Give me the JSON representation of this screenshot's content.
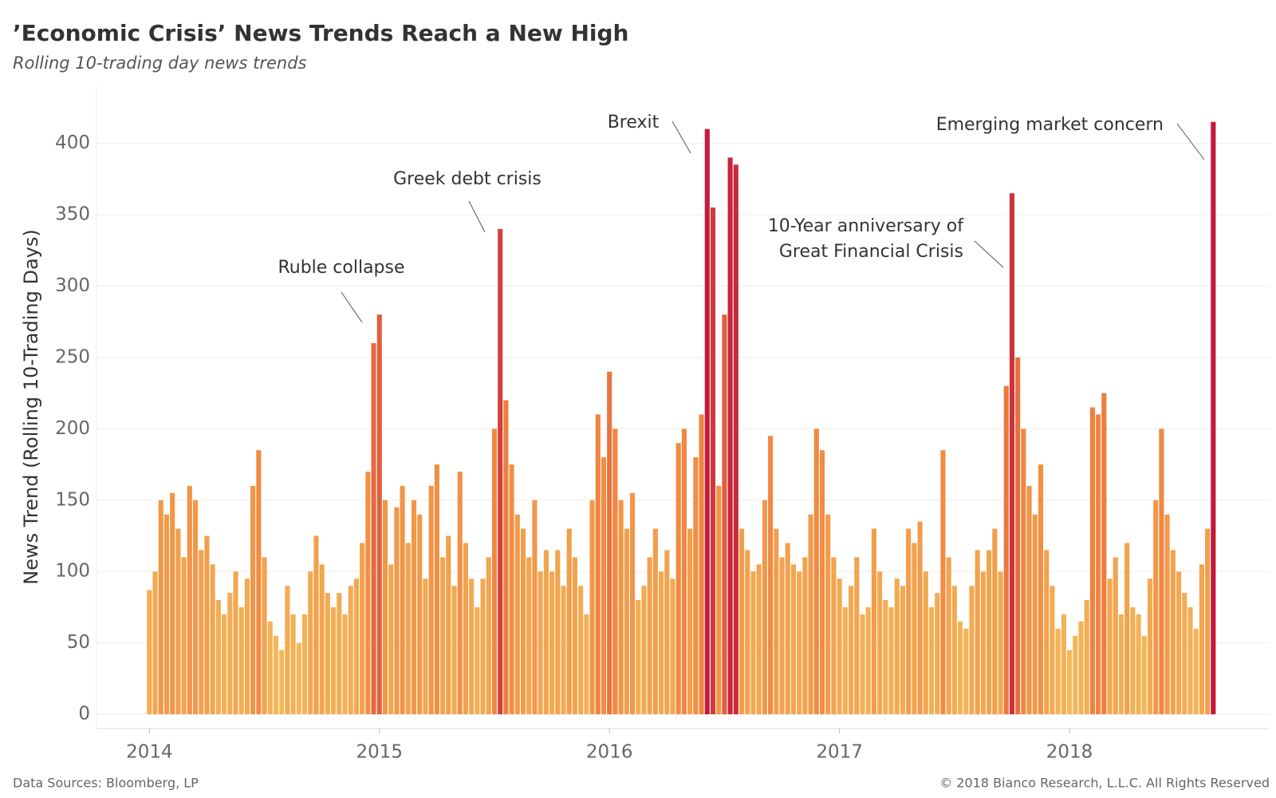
{
  "chart_data": {
    "type": "bar",
    "title": "’Economic Crisis’ News Trends Reach a New High",
    "subtitle": "Rolling 10-trading day news trends",
    "y_label": "News Trend (Rolling 10-Trading Days)",
    "source": "Data Sources: Bloomberg, LP",
    "copyright": "© 2018 Bianco Research, L.L.C. All Rights Reserved",
    "annotations": [
      "Ruble collapse",
      "Greek debt crisis",
      "Brexit",
      "10-Year anniversary of",
      "Great Financial Crisis",
      "Emerging market concern"
    ],
    "color_stops": [
      "#f5c760",
      "#f0853f",
      "#c1173b"
    ],
    "grid": true,
    "xlim": [
      2013.77,
      2018.87
    ],
    "xticks": [
      2014,
      2015,
      2016,
      2017,
      2018
    ],
    "ylim": [
      -10,
      440
    ],
    "yticks": [
      0,
      50,
      100,
      150,
      200,
      250,
      300,
      350,
      400
    ],
    "x": [
      2014.0,
      2014.025,
      2014.05,
      2014.075,
      2014.1,
      2014.125,
      2014.15,
      2014.175,
      2014.2,
      2014.225,
      2014.25,
      2014.275,
      2014.3,
      2014.325,
      2014.35,
      2014.375,
      2014.4,
      2014.425,
      2014.45,
      2014.475,
      2014.5,
      2014.525,
      2014.55,
      2014.575,
      2014.6,
      2014.625,
      2014.65,
      2014.675,
      2014.7,
      2014.725,
      2014.75,
      2014.775,
      2014.8,
      2014.825,
      2014.85,
      2014.875,
      2014.9,
      2014.925,
      2014.95,
      2014.975,
      2015.0,
      2015.025,
      2015.05,
      2015.075,
      2015.1,
      2015.125,
      2015.15,
      2015.175,
      2015.2,
      2015.225,
      2015.25,
      2015.275,
      2015.3,
      2015.325,
      2015.35,
      2015.375,
      2015.4,
      2015.425,
      2015.45,
      2015.475,
      2015.5,
      2015.525,
      2015.55,
      2015.575,
      2015.6,
      2015.625,
      2015.65,
      2015.675,
      2015.7,
      2015.725,
      2015.75,
      2015.775,
      2015.8,
      2015.825,
      2015.85,
      2015.875,
      2015.9,
      2015.925,
      2015.95,
      2015.975,
      2016.0,
      2016.025,
      2016.05,
      2016.075,
      2016.1,
      2016.125,
      2016.15,
      2016.175,
      2016.2,
      2016.225,
      2016.25,
      2016.275,
      2016.3,
      2016.325,
      2016.35,
      2016.375,
      2016.4,
      2016.425,
      2016.45,
      2016.475,
      2016.5,
      2016.525,
      2016.55,
      2016.575,
      2016.6,
      2016.625,
      2016.65,
      2016.675,
      2016.7,
      2016.725,
      2016.75,
      2016.775,
      2016.8,
      2016.825,
      2016.85,
      2016.875,
      2016.9,
      2016.925,
      2016.95,
      2016.975,
      2017.0,
      2017.025,
      2017.05,
      2017.075,
      2017.1,
      2017.125,
      2017.15,
      2017.175,
      2017.2,
      2017.225,
      2017.25,
      2017.275,
      2017.3,
      2017.325,
      2017.35,
      2017.375,
      2017.4,
      2017.425,
      2017.45,
      2017.475,
      2017.5,
      2017.525,
      2017.55,
      2017.575,
      2017.6,
      2017.625,
      2017.65,
      2017.675,
      2017.7,
      2017.725,
      2017.75,
      2017.775,
      2017.8,
      2017.825,
      2017.85,
      2017.875,
      2017.9,
      2017.925,
      2017.95,
      2017.975,
      2018.0,
      2018.025,
      2018.05,
      2018.075,
      2018.1,
      2018.125,
      2018.15,
      2018.175,
      2018.2,
      2018.225,
      2018.25,
      2018.275,
      2018.3,
      2018.325,
      2018.35,
      2018.375,
      2018.4,
      2018.425,
      2018.45,
      2018.475,
      2018.5,
      2018.525,
      2018.55,
      2018.575,
      2018.6,
      2018.625
    ],
    "values": [
      87,
      100,
      150,
      140,
      155,
      130,
      110,
      160,
      150,
      115,
      125,
      105,
      80,
      70,
      85,
      100,
      75,
      95,
      160,
      185,
      110,
      65,
      55,
      45,
      90,
      70,
      50,
      70,
      100,
      125,
      105,
      85,
      75,
      85,
      70,
      90,
      95,
      120,
      170,
      260,
      280,
      150,
      105,
      145,
      160,
      120,
      150,
      140,
      95,
      160,
      175,
      110,
      125,
      90,
      170,
      120,
      95,
      75,
      95,
      110,
      200,
      340,
      220,
      175,
      140,
      130,
      110,
      150,
      100,
      115,
      100,
      115,
      90,
      130,
      110,
      90,
      70,
      150,
      210,
      180,
      240,
      200,
      150,
      130,
      155,
      80,
      90,
      110,
      130,
      100,
      115,
      95,
      190,
      200,
      130,
      180,
      210,
      410,
      355,
      160,
      280,
      390,
      385,
      130,
      115,
      100,
      105,
      150,
      195,
      130,
      110,
      120,
      105,
      100,
      110,
      140,
      200,
      185,
      140,
      110,
      95,
      75,
      90,
      110,
      70,
      75,
      130,
      100,
      80,
      75,
      95,
      90,
      130,
      120,
      135,
      100,
      75,
      85,
      185,
      110,
      90,
      65,
      60,
      90,
      115,
      100,
      115,
      130,
      100,
      230,
      365,
      250,
      200,
      160,
      140,
      175,
      115,
      90,
      60,
      70,
      45,
      55,
      65,
      80,
      215,
      210,
      225,
      95,
      110,
      70,
      120,
      75,
      70,
      55,
      95,
      150,
      200,
      140,
      115,
      100,
      85,
      75,
      60,
      105,
      130,
      415
    ]
  }
}
